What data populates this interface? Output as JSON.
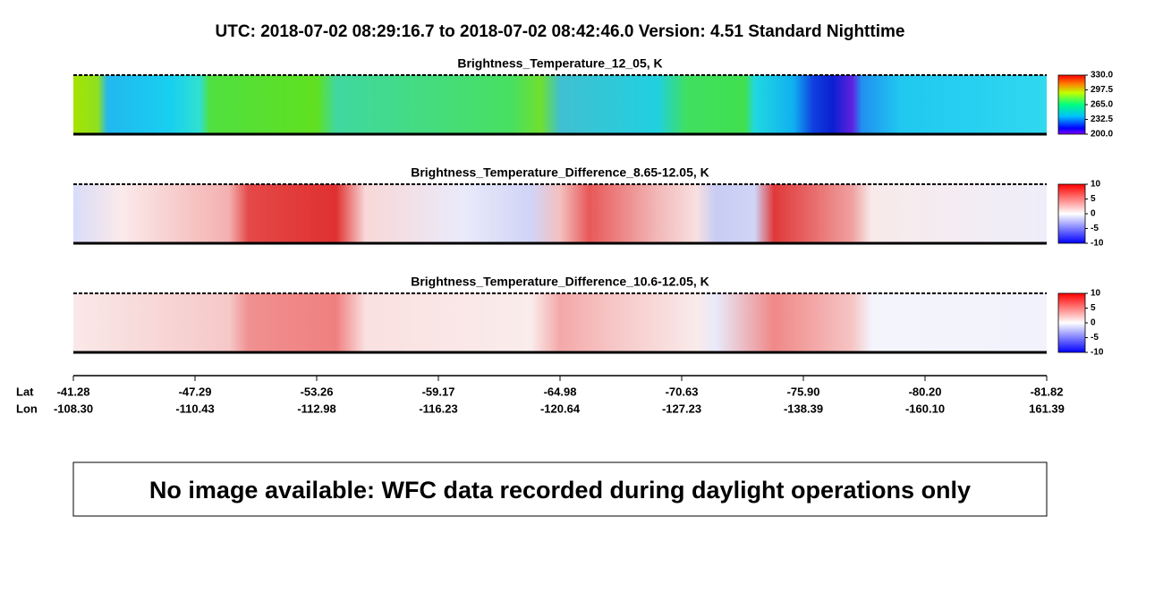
{
  "title": "UTC:  2018-07-02   08:29:16.7  to  2018-07-02   08:42:46.0    Version: 4.51  Standard Nighttime",
  "panels": [
    {
      "title": "Brightness_Temperature_12_05, K",
      "lim": [
        200,
        330
      ],
      "ticks": [
        {
          "value": 330,
          "label": "330.0"
        },
        297.5,
        {
          "value": 265,
          "label": "265.0"
        },
        232.5,
        {
          "value": 200,
          "label": "200.0"
        }
      ]
    },
    {
      "title": "Brightness_Temperature_Difference_8.65-12.05, K",
      "lim": [
        -10,
        10
      ],
      "ticks": [
        10,
        5,
        0,
        -5,
        -10
      ]
    },
    {
      "title": "Brightness_Temperature_Difference_10.6-12.05, K",
      "lim": [
        -10,
        10
      ],
      "ticks": [
        10,
        5,
        0,
        -5,
        -10
      ]
    }
  ],
  "axis": {
    "lat_label": "Lat",
    "lon_label": "Lon",
    "lat": [
      "-41.28",
      "-47.29",
      "-53.26",
      "-59.17",
      "-64.98",
      "-70.63",
      "-75.90",
      "-80.20",
      "-81.82"
    ],
    "lon": [
      "-108.30",
      "-110.43",
      "-112.98",
      "-116.23",
      "-120.64",
      "-127.23",
      "-138.39",
      "-160.10",
      "161.39"
    ]
  },
  "message": "No image available: WFC data recorded during daylight operations only"
}
